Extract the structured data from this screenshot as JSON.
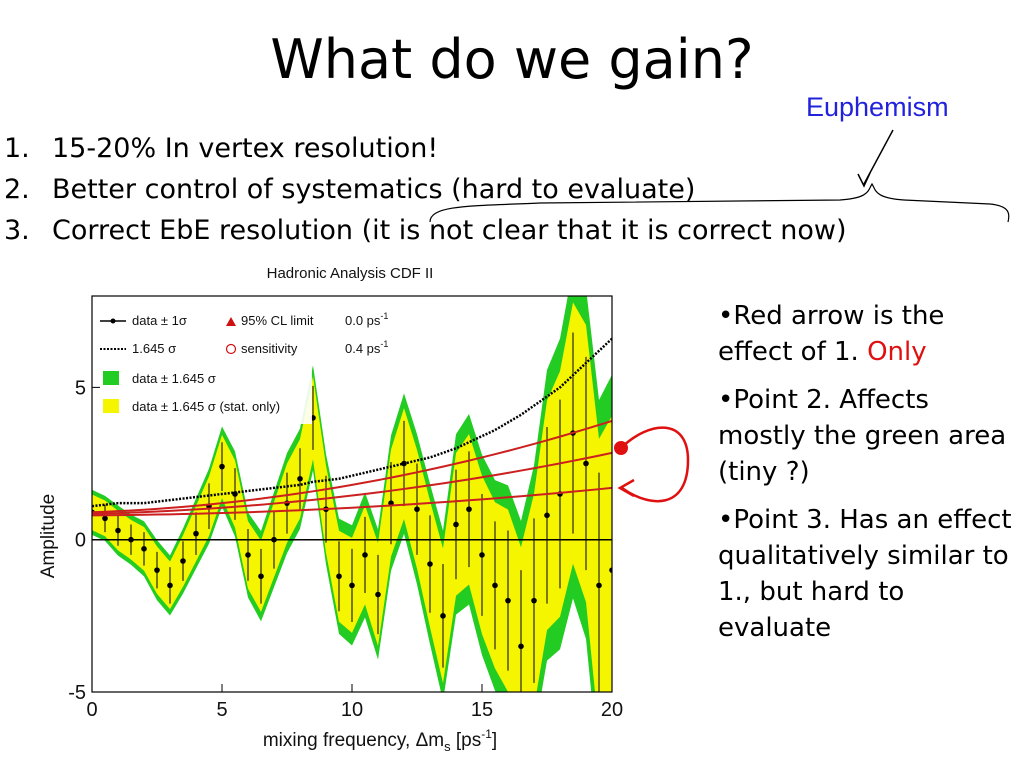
{
  "slide": {
    "title": "What do we gain?",
    "annotation": "Euphemism",
    "items": [
      {
        "num": "1.",
        "text": "15-20% In vertex resolution!"
      },
      {
        "num": "2.",
        "text": "Better control of systematics (hard to evaluate)"
      },
      {
        "num": "3.",
        "text": "Correct EbE resolution (it is not clear that it is correct now)"
      }
    ],
    "notes": [
      {
        "text": "•Red arrow is the effect of 1. ",
        "highlight": "Only"
      },
      {
        "text": "•Point 2. Affects mostly the green area (tiny ?)",
        "highlight": ""
      },
      {
        "text": "•Point 3. Has an effect qualitatively similar to 1., but hard to evaluate",
        "highlight": ""
      }
    ]
  },
  "colors": {
    "yellow_band": "#f5f500",
    "green_band": "#22cc22",
    "annotation_red": "#e01010",
    "annotation_blue": "#2222dd"
  },
  "chart_data": {
    "type": "line",
    "title": "Hadronic Analysis CDF II",
    "xlabel": "mixing frequency, Δm",
    "xlabel_sub": "s",
    "xlabel_unit": " [ps",
    "xlabel_sup": "-1",
    "xlabel_close": "]",
    "ylabel": "Amplitude",
    "xlim": [
      0,
      20
    ],
    "ylim": [
      -5,
      8
    ],
    "xticks": [
      0,
      5,
      10,
      15,
      20
    ],
    "xtick_labels": [
      "0",
      "5",
      "10",
      "15",
      "20"
    ],
    "yticks": [
      -5,
      0,
      5
    ],
    "ytick_labels": [
      "-5",
      "0",
      "5"
    ],
    "legend": {
      "placement": "top-left",
      "row1": {
        "a": "data ± 1σ",
        "b": "95% CL limit",
        "c": "0.0 ps",
        "c_sup": "-1"
      },
      "row2": {
        "a": "1.645 σ",
        "b": "sensitivity",
        "c": "0.4 ps",
        "c_sup": "-1"
      },
      "row3": "data ± 1.645 σ",
      "row4": "data ± 1.645 σ (stat. only)"
    },
    "x": [
      0,
      0.5,
      1,
      1.5,
      2,
      2.5,
      3,
      3.5,
      4,
      4.5,
      5,
      5.5,
      6,
      6.5,
      7,
      7.5,
      8,
      8.5,
      9,
      9.5,
      10,
      10.5,
      11,
      11.5,
      12,
      12.5,
      13,
      13.5,
      14,
      14.5,
      15,
      15.5,
      16,
      16.5,
      17,
      17.5,
      18,
      18.5,
      19,
      19.5,
      20
    ],
    "series": [
      {
        "name": "data ± 1σ",
        "values": [
          0.9,
          0.7,
          0.3,
          0.0,
          -0.3,
          -1.0,
          -1.5,
          -0.7,
          0.2,
          1.1,
          2.4,
          1.5,
          -0.5,
          -1.2,
          0.0,
          1.2,
          2.0,
          4.0,
          1.0,
          -1.2,
          -1.5,
          -0.5,
          -1.8,
          1.2,
          2.5,
          1.0,
          -0.8,
          -2.5,
          0.5,
          1.0,
          -0.5,
          -1.5,
          -2.0,
          -3.5,
          -2.0,
          0.8,
          1.5,
          3.5,
          2.5,
          -1.5,
          -1.0
        ],
        "err": [
          0.45,
          0.45,
          0.5,
          0.5,
          0.55,
          0.6,
          0.6,
          0.65,
          0.7,
          0.75,
          0.8,
          0.85,
          0.85,
          0.9,
          0.95,
          1.0,
          1.0,
          1.05,
          1.1,
          1.15,
          1.2,
          1.25,
          1.3,
          1.35,
          1.4,
          1.5,
          1.6,
          1.7,
          1.8,
          1.9,
          2.0,
          2.1,
          2.3,
          2.5,
          2.7,
          2.9,
          3.1,
          3.3,
          3.5,
          3.7,
          3.9
        ]
      },
      {
        "name": "1.645 σ",
        "values": [
          1.1,
          1.15,
          1.2,
          1.2,
          1.2,
          1.25,
          1.3,
          1.35,
          1.4,
          1.45,
          1.5,
          1.55,
          1.6,
          1.65,
          1.7,
          1.75,
          1.8,
          1.9,
          1.95,
          2.0,
          2.1,
          2.2,
          2.3,
          2.4,
          2.5,
          2.6,
          2.7,
          2.85,
          3.0,
          3.2,
          3.4,
          3.6,
          3.85,
          4.1,
          4.4,
          4.7,
          5.0,
          5.4,
          5.8,
          6.2,
          6.6
        ]
      }
    ]
  }
}
